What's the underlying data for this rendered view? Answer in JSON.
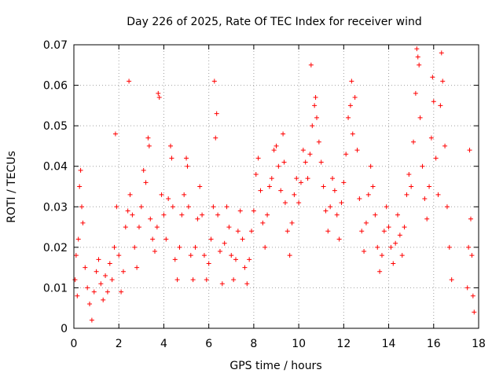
{
  "chart_data": {
    "type": "scatter",
    "title": "Day 226 of 2025, Rate Of TEC Index for receiver wind",
    "xlabel": "GPS time / hours",
    "ylabel": "ROTI / TECUs",
    "xlim": [
      0,
      18
    ],
    "ylim": [
      0,
      0.07
    ],
    "xticks": [
      "0",
      "2",
      "4",
      "6",
      "8",
      "10",
      "12",
      "14",
      "16",
      "18"
    ],
    "yticks": [
      "0",
      "0.01",
      "0.02",
      "0.03",
      "0.04",
      "0.05",
      "0.06",
      "0.07"
    ],
    "grid": true,
    "marker": "plus",
    "color": "#ff0000",
    "series": [
      {
        "points": [
          [
            0.05,
            0.012
          ],
          [
            0.1,
            0.018
          ],
          [
            0.15,
            0.008
          ],
          [
            0.2,
            0.022
          ],
          [
            0.25,
            0.035
          ],
          [
            0.3,
            0.039
          ],
          [
            0.35,
            0.03
          ],
          [
            0.4,
            0.026
          ],
          [
            0.5,
            0.015
          ],
          [
            0.6,
            0.01
          ],
          [
            0.7,
            0.006
          ],
          [
            0.8,
            0.002
          ],
          [
            0.9,
            0.009
          ],
          [
            1.0,
            0.014
          ],
          [
            1.1,
            0.017
          ],
          [
            1.2,
            0.011
          ],
          [
            1.3,
            0.007
          ],
          [
            1.4,
            0.013
          ],
          [
            1.5,
            0.009
          ],
          [
            1.6,
            0.016
          ],
          [
            1.7,
            0.012
          ],
          [
            1.8,
            0.02
          ],
          [
            1.85,
            0.048
          ],
          [
            1.9,
            0.03
          ],
          [
            2.0,
            0.018
          ],
          [
            2.1,
            0.009
          ],
          [
            2.2,
            0.014
          ],
          [
            2.3,
            0.025
          ],
          [
            2.4,
            0.029
          ],
          [
            2.45,
            0.061
          ],
          [
            2.5,
            0.033
          ],
          [
            2.6,
            0.028
          ],
          [
            2.7,
            0.02
          ],
          [
            2.8,
            0.015
          ],
          [
            2.9,
            0.025
          ],
          [
            3.0,
            0.03
          ],
          [
            3.1,
            0.039
          ],
          [
            3.2,
            0.036
          ],
          [
            3.3,
            0.047
          ],
          [
            3.35,
            0.045
          ],
          [
            3.4,
            0.027
          ],
          [
            3.5,
            0.022
          ],
          [
            3.6,
            0.019
          ],
          [
            3.7,
            0.025
          ],
          [
            3.75,
            0.058
          ],
          [
            3.8,
            0.057
          ],
          [
            3.9,
            0.033
          ],
          [
            4.0,
            0.028
          ],
          [
            4.1,
            0.022
          ],
          [
            4.2,
            0.032
          ],
          [
            4.3,
            0.045
          ],
          [
            4.35,
            0.042
          ],
          [
            4.4,
            0.03
          ],
          [
            4.5,
            0.017
          ],
          [
            4.6,
            0.012
          ],
          [
            4.7,
            0.02
          ],
          [
            4.8,
            0.028
          ],
          [
            4.9,
            0.033
          ],
          [
            5.0,
            0.042
          ],
          [
            5.05,
            0.04
          ],
          [
            5.1,
            0.03
          ],
          [
            5.2,
            0.018
          ],
          [
            5.3,
            0.012
          ],
          [
            5.4,
            0.02
          ],
          [
            5.5,
            0.027
          ],
          [
            5.6,
            0.035
          ],
          [
            5.7,
            0.028
          ],
          [
            5.8,
            0.018
          ],
          [
            5.9,
            0.012
          ],
          [
            6.0,
            0.016
          ],
          [
            6.1,
            0.022
          ],
          [
            6.2,
            0.03
          ],
          [
            6.25,
            0.061
          ],
          [
            6.3,
            0.047
          ],
          [
            6.35,
            0.053
          ],
          [
            6.4,
            0.028
          ],
          [
            6.5,
            0.019
          ],
          [
            6.6,
            0.011
          ],
          [
            6.7,
            0.021
          ],
          [
            6.8,
            0.03
          ],
          [
            6.9,
            0.025
          ],
          [
            7.0,
            0.018
          ],
          [
            7.1,
            0.012
          ],
          [
            7.2,
            0.017
          ],
          [
            7.3,
            0.024
          ],
          [
            7.4,
            0.029
          ],
          [
            7.5,
            0.022
          ],
          [
            7.6,
            0.015
          ],
          [
            7.7,
            0.011
          ],
          [
            7.8,
            0.017
          ],
          [
            7.9,
            0.024
          ],
          [
            8.0,
            0.029
          ],
          [
            8.1,
            0.038
          ],
          [
            8.2,
            0.042
          ],
          [
            8.3,
            0.034
          ],
          [
            8.4,
            0.026
          ],
          [
            8.5,
            0.02
          ],
          [
            8.6,
            0.028
          ],
          [
            8.7,
            0.035
          ],
          [
            8.8,
            0.037
          ],
          [
            8.9,
            0.044
          ],
          [
            9.0,
            0.045
          ],
          [
            9.1,
            0.04
          ],
          [
            9.2,
            0.034
          ],
          [
            9.3,
            0.048
          ],
          [
            9.35,
            0.041
          ],
          [
            9.4,
            0.031
          ],
          [
            9.5,
            0.024
          ],
          [
            9.6,
            0.018
          ],
          [
            9.7,
            0.026
          ],
          [
            9.8,
            0.033
          ],
          [
            9.9,
            0.037
          ],
          [
            10.0,
            0.031
          ],
          [
            10.1,
            0.036
          ],
          [
            10.2,
            0.044
          ],
          [
            10.3,
            0.041
          ],
          [
            10.4,
            0.037
          ],
          [
            10.5,
            0.043
          ],
          [
            10.55,
            0.065
          ],
          [
            10.6,
            0.05
          ],
          [
            10.7,
            0.055
          ],
          [
            10.75,
            0.057
          ],
          [
            10.8,
            0.052
          ],
          [
            10.9,
            0.046
          ],
          [
            11.0,
            0.041
          ],
          [
            11.1,
            0.035
          ],
          [
            11.2,
            0.029
          ],
          [
            11.3,
            0.024
          ],
          [
            11.4,
            0.03
          ],
          [
            11.5,
            0.037
          ],
          [
            11.6,
            0.034
          ],
          [
            11.7,
            0.028
          ],
          [
            11.8,
            0.022
          ],
          [
            11.9,
            0.031
          ],
          [
            12.0,
            0.036
          ],
          [
            12.1,
            0.043
          ],
          [
            12.2,
            0.052
          ],
          [
            12.3,
            0.055
          ],
          [
            12.35,
            0.061
          ],
          [
            12.4,
            0.048
          ],
          [
            12.5,
            0.057
          ],
          [
            12.6,
            0.044
          ],
          [
            12.7,
            0.032
          ],
          [
            12.8,
            0.024
          ],
          [
            12.9,
            0.019
          ],
          [
            13.0,
            0.026
          ],
          [
            13.1,
            0.033
          ],
          [
            13.2,
            0.04
          ],
          [
            13.3,
            0.035
          ],
          [
            13.4,
            0.028
          ],
          [
            13.5,
            0.02
          ],
          [
            13.6,
            0.014
          ],
          [
            13.7,
            0.018
          ],
          [
            13.8,
            0.024
          ],
          [
            13.9,
            0.03
          ],
          [
            14.0,
            0.025
          ],
          [
            14.1,
            0.02
          ],
          [
            14.2,
            0.016
          ],
          [
            14.3,
            0.021
          ],
          [
            14.4,
            0.028
          ],
          [
            14.5,
            0.023
          ],
          [
            14.6,
            0.018
          ],
          [
            14.7,
            0.025
          ],
          [
            14.8,
            0.033
          ],
          [
            14.9,
            0.038
          ],
          [
            15.0,
            0.035
          ],
          [
            15.1,
            0.046
          ],
          [
            15.2,
            0.058
          ],
          [
            15.25,
            0.069
          ],
          [
            15.3,
            0.067
          ],
          [
            15.35,
            0.065
          ],
          [
            15.4,
            0.052
          ],
          [
            15.5,
            0.04
          ],
          [
            15.6,
            0.032
          ],
          [
            15.7,
            0.027
          ],
          [
            15.8,
            0.035
          ],
          [
            15.9,
            0.047
          ],
          [
            15.95,
            0.062
          ],
          [
            16.0,
            0.056
          ],
          [
            16.1,
            0.042
          ],
          [
            16.2,
            0.033
          ],
          [
            16.3,
            0.055
          ],
          [
            16.35,
            0.068
          ],
          [
            16.4,
            0.061
          ],
          [
            16.5,
            0.045
          ],
          [
            16.6,
            0.03
          ],
          [
            16.7,
            0.02
          ],
          [
            16.8,
            0.012
          ],
          [
            17.5,
            0.01
          ],
          [
            17.55,
            0.02
          ],
          [
            17.6,
            0.044
          ],
          [
            17.65,
            0.027
          ],
          [
            17.7,
            0.018
          ],
          [
            17.75,
            0.008
          ],
          [
            17.8,
            0.004
          ]
        ]
      }
    ]
  }
}
